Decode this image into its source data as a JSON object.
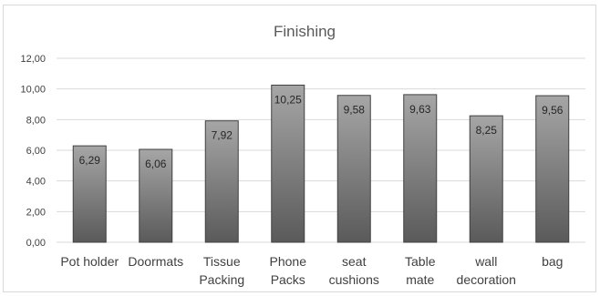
{
  "chart_data": {
    "type": "bar",
    "title": "Finishing",
    "xlabel": "",
    "ylabel": "",
    "categories": [
      [
        "Pot holder"
      ],
      [
        "Doormats"
      ],
      [
        "Tissue",
        "Packing"
      ],
      [
        "Phone",
        "Packs"
      ],
      [
        "seat",
        "cushions"
      ],
      [
        "Table",
        "mate"
      ],
      [
        "wall",
        "decoration"
      ],
      [
        "bag"
      ]
    ],
    "values": [
      6.29,
      6.06,
      7.92,
      10.25,
      9.58,
      9.63,
      8.25,
      9.56
    ],
    "data_labels": [
      "6,29",
      "6,06",
      "7,92",
      "10,25",
      "9,58",
      "9,63",
      "8,25",
      "9,56"
    ],
    "ylim": [
      0,
      12
    ],
    "yticks": [
      0,
      2,
      4,
      6,
      8,
      10,
      12
    ],
    "ytick_labels": [
      "0,00",
      "2,00",
      "4,00",
      "6,00",
      "8,00",
      "10,00",
      "12,00"
    ],
    "grid": true,
    "legend": "none",
    "colors": {
      "bar_top": "#a6a6a6",
      "bar_bottom": "#5a5a5a",
      "grid": "#d9d9d9"
    }
  }
}
